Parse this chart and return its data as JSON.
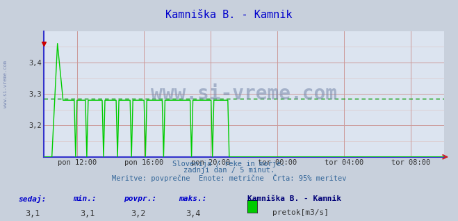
{
  "title": "Kamniška B. - Kamnik",
  "title_color": "#0000cc",
  "bg_color": "#c8d0dc",
  "plot_bg_color": "#dce4f0",
  "grid_color_major": "#cc9999",
  "grid_color_minor": "#ddc8c8",
  "ylim": [
    3.1,
    3.5
  ],
  "yticks": [
    3.2,
    3.3,
    3.4
  ],
  "ytick_labels": [
    "3,2",
    "3,3",
    "3,4"
  ],
  "xlabel_ticks": [
    "pon 12:00",
    "pon 16:00",
    "pon 20:00",
    "tor 00:00",
    "tor 04:00",
    "tor 08:00"
  ],
  "xlabel_tick_positions": [
    0.0833,
    0.25,
    0.4167,
    0.5833,
    0.75,
    0.9167
  ],
  "line_color": "#00cc00",
  "avg_line_color": "#009900",
  "avg_line_y": 3.285,
  "border_color": "#3333cc",
  "watermark": "www.si-vreme.com",
  "watermark_color": "#7788aa",
  "footer_line1": "Slovenija / reke in morje.",
  "footer_line2": "zadnji dan / 5 minut.",
  "footer_line3": "Meritve: povprečne  Enote: metrične  Črta: 95% meritev",
  "footer_color": "#336699",
  "legend_title": "Kamniška B. - Kamnik",
  "legend_color": "#000077",
  "legend_series": "pretok[m3/s]",
  "legend_patch_color": "#00cc00",
  "stat_labels": [
    "sedaj:",
    "min.:",
    "povpr.:",
    "maks.:"
  ],
  "stat_values": [
    "3,1",
    "3,1",
    "3,2",
    "3,4"
  ],
  "stat_label_color": "#0000cc",
  "stat_value_color": "#333333",
  "xmin": 0.0,
  "xmax": 1.0
}
